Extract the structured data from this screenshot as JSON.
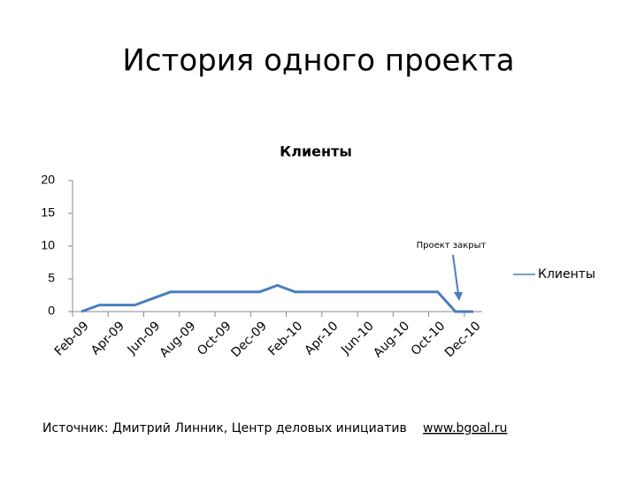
{
  "slide_title": "История одного проекта",
  "chart_data": {
    "type": "line",
    "title": "Клиенты",
    "categories": [
      "Feb-09",
      null,
      "Apr-09",
      null,
      "Jun-09",
      null,
      "Aug-09",
      null,
      "Oct-09",
      null,
      "Dec-09",
      null,
      "Feb-10",
      null,
      "Apr-10",
      null,
      "Jun-10",
      null,
      "Aug-10",
      null,
      "Oct-10",
      null,
      "Dec-10"
    ],
    "series": [
      {
        "name": "Клиенты",
        "color": "#4a7ebb",
        "values": [
          0,
          1,
          1,
          1,
          2,
          3,
          3,
          3,
          3,
          3,
          3,
          4,
          3,
          3,
          3,
          3,
          3,
          3,
          3,
          3,
          3,
          0,
          0
        ]
      }
    ],
    "ylim": [
      0,
      20
    ],
    "yticks": [
      0,
      5,
      10,
      15,
      20
    ],
    "grid": false,
    "legend": "right",
    "annotation": "Проект закрыт"
  },
  "source": "Источник: Дмитрий Линник, Центр деловых инициатив",
  "source_link": "www.bgoal.ru"
}
